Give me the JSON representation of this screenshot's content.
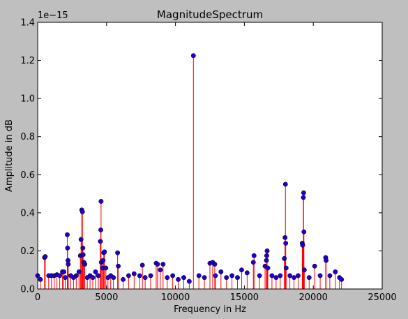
{
  "chart_data": {
    "type": "stem",
    "title": "MagnitudeSpectrum",
    "xlabel": "Frequency in Hz",
    "ylabel": "Amplitude in dB",
    "y_offset_label": "1e−15",
    "xlim": [
      0,
      25000
    ],
    "ylim": [
      0,
      1.4
    ],
    "y_multiplier": 1e-15,
    "x_ticks": [
      0,
      5000,
      10000,
      15000,
      20000,
      25000
    ],
    "x_tick_labels": [
      "0",
      "5000",
      "10000",
      "15000",
      "20000",
      "25000"
    ],
    "y_ticks": [
      0.0,
      0.2,
      0.4,
      0.6,
      0.8,
      1.0,
      1.2,
      1.4
    ],
    "y_tick_labels": [
      "0.0",
      "0.2",
      "0.4",
      "0.6",
      "0.8",
      "1.0",
      "1.2",
      "1.4"
    ],
    "grid": false,
    "legend": "none",
    "colors": {
      "stem": "#ff0000",
      "marker": "#1f00c8",
      "baseline": "#ff0000",
      "background": "#bfbfbf",
      "plot_area": "#ffffff"
    },
    "series": [
      {
        "x": [
          0,
          200,
          500,
          550,
          800,
          1000,
          1200,
          1400,
          1600,
          1800,
          1900,
          2000,
          2150,
          2170,
          2200,
          2220,
          2400,
          2600,
          2800,
          3000,
          3100,
          3150,
          3200,
          3250,
          3280,
          3300,
          3350,
          3420,
          3600,
          3800,
          4000,
          4200,
          4400,
          4550,
          4580,
          4600,
          4620,
          4700,
          4750,
          4800,
          4850,
          4950,
          5100,
          5300,
          5500,
          5800,
          5850,
          6200,
          6600,
          7000,
          7400,
          7600,
          7800,
          8200,
          8600,
          8700,
          8900,
          9100,
          9400,
          9800,
          10200,
          10600,
          11000,
          11300,
          11700,
          12100,
          12500,
          12700,
          12850,
          12900,
          13300,
          13700,
          14100,
          14500,
          14800,
          15200,
          15650,
          15700,
          16100,
          16500,
          16600,
          16620,
          16650,
          16700,
          17000,
          17300,
          17600,
          17900,
          17950,
          17980,
          18000,
          18030,
          18300,
          18600,
          18900,
          19200,
          19230,
          19280,
          19300,
          19320,
          19350,
          19700,
          20100,
          20500,
          20900,
          20930,
          21200,
          21600,
          21900,
          22050
        ],
        "y": [
          0.07,
          0.05,
          0.165,
          0.17,
          0.07,
          0.07,
          0.07,
          0.075,
          0.07,
          0.09,
          0.09,
          0.06,
          0.285,
          0.215,
          0.15,
          0.13,
          0.07,
          0.06,
          0.07,
          0.09,
          0.175,
          0.26,
          0.415,
          0.405,
          0.215,
          0.18,
          0.14,
          0.13,
          0.06,
          0.07,
          0.06,
          0.09,
          0.07,
          0.25,
          0.31,
          0.46,
          0.14,
          0.11,
          0.15,
          0.19,
          0.195,
          0.11,
          0.06,
          0.07,
          0.06,
          0.19,
          0.12,
          0.05,
          0.07,
          0.08,
          0.07,
          0.125,
          0.06,
          0.07,
          0.135,
          0.13,
          0.1,
          0.13,
          0.06,
          0.07,
          0.05,
          0.06,
          0.04,
          1.225,
          0.07,
          0.06,
          0.135,
          0.14,
          0.13,
          0.07,
          0.09,
          0.06,
          0.07,
          0.06,
          0.1,
          0.085,
          0.14,
          0.175,
          0.07,
          0.12,
          0.15,
          0.175,
          0.2,
          0.11,
          0.07,
          0.06,
          0.07,
          0.16,
          0.27,
          0.55,
          0.24,
          0.11,
          0.07,
          0.06,
          0.07,
          0.24,
          0.23,
          0.48,
          0.505,
          0.3,
          0.1,
          0.06,
          0.12,
          0.07,
          0.165,
          0.15,
          0.07,
          0.09,
          0.06,
          0.05
        ]
      }
    ]
  }
}
